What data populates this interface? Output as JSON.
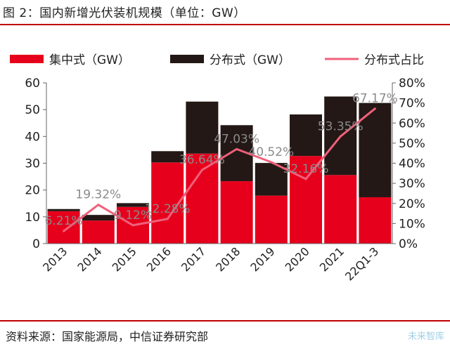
{
  "figure": {
    "title": "图 2：国内新增光伏装机规模（单位：GW）",
    "source": "资料来源：国家能源局，中信证券研究部",
    "watermark": "未来智库"
  },
  "colors": {
    "centralized": "#e6001c",
    "distributed": "#231815",
    "share_line": "#f0607a",
    "rule": "#c00000"
  },
  "chart_data": {
    "type": "bar",
    "stacked": true,
    "categories": [
      "2013",
      "2014",
      "2015",
      "2016",
      "2017",
      "2018",
      "2019",
      "2020",
      "2021",
      "22Q1-3"
    ],
    "series": [
      {
        "name": "集中式（GW）",
        "values": [
          12.1,
          8.6,
          13.7,
          30.3,
          33.6,
          23.3,
          17.9,
          32.7,
          25.6,
          17.3
        ]
      },
      {
        "name": "分布式（GW）",
        "values": [
          0.8,
          2.1,
          1.4,
          4.2,
          19.4,
          20.9,
          12.2,
          15.5,
          29.3,
          35.2
        ]
      }
    ],
    "line_series": {
      "name": "分布式占比",
      "axis": "right",
      "values": [
        6.21,
        19.32,
        9.12,
        12.28,
        36.64,
        47.03,
        40.52,
        32.16,
        53.35,
        67.17
      ],
      "labels": [
        "6.21%",
        "19.32%",
        "9.12%",
        "12.28%",
        "36.64%",
        "47.03%",
        "40.52%",
        "32.16%",
        "53.35%",
        "67.17%"
      ]
    },
    "y_left": {
      "ylim": [
        0,
        60
      ],
      "ticks": [
        "0",
        "10",
        "20",
        "30",
        "40",
        "50",
        "60"
      ]
    },
    "y_right": {
      "ylim": [
        0,
        80
      ],
      "ticks": [
        "0%",
        "10%",
        "20%",
        "30%",
        "40%",
        "50%",
        "60%",
        "70%",
        "80%"
      ]
    },
    "legend": {
      "position": "top",
      "items": [
        "集中式（GW）",
        "分布式（GW）",
        "分布式占比"
      ]
    },
    "grid": false
  }
}
